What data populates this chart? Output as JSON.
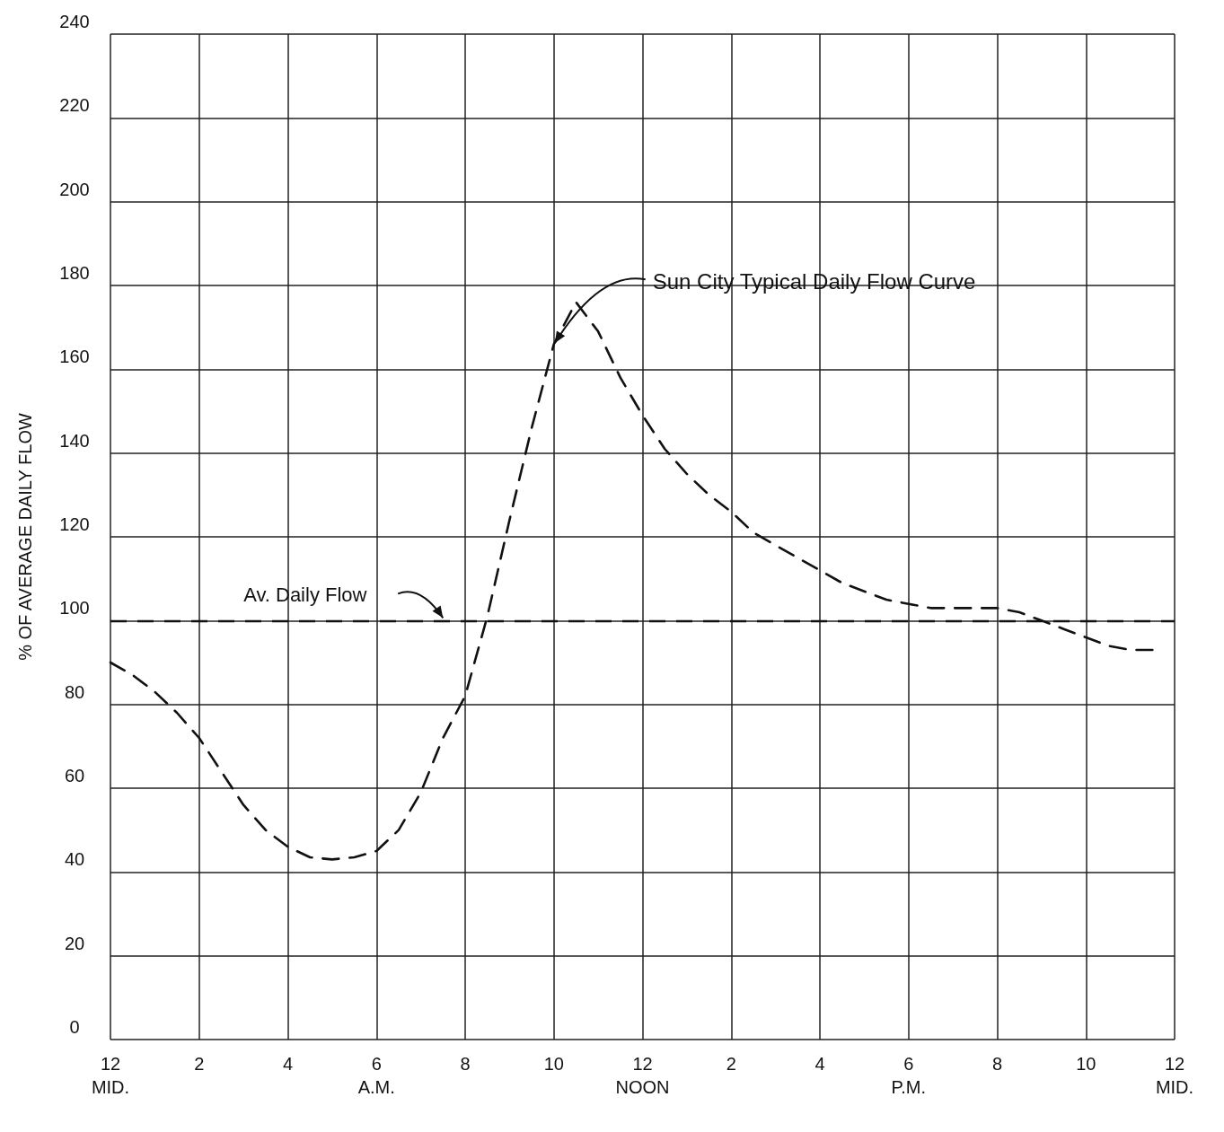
{
  "chart_data": {
    "type": "line",
    "ylabel": "% OF AVERAGE DAILY FLOW",
    "categories": [
      "12\nMID.",
      null,
      null,
      null,
      "2",
      null,
      null,
      null,
      "4",
      null,
      null,
      null,
      "6\nA.M.",
      null,
      null,
      null,
      "8",
      null,
      null,
      null,
      "10",
      null,
      null,
      null,
      "12\nNOON",
      null,
      null,
      null,
      "2",
      null,
      null,
      null,
      "4",
      null,
      null,
      null,
      "6\nP.M.",
      null,
      null,
      null,
      "8",
      null,
      null,
      null,
      "10",
      null,
      null,
      null,
      "12\nMID."
    ],
    "series": [
      {
        "color": "#111111",
        "values": [
          90,
          87,
          83,
          78,
          72,
          64,
          56,
          50,
          46,
          43.5,
          43,
          43.5,
          45,
          50,
          59,
          72,
          82,
          101,
          124,
          146,
          166,
          176,
          169,
          158,
          149,
          141,
          135,
          130,
          126,
          121,
          118,
          115,
          112,
          109,
          107,
          105,
          104,
          103,
          103,
          103,
          103,
          102,
          100,
          98,
          96,
          94,
          93,
          93,
          null
        ]
      }
    ],
    "ylim": [
      0,
      240
    ],
    "yticks": [
      0,
      20,
      40,
      60,
      80,
      100,
      120,
      140,
      160,
      180,
      200,
      220,
      240
    ],
    "ref_lines": [
      {
        "axis": "y",
        "value": 100,
        "label": "Av. Daily Flow",
        "color": "#111111",
        "line_style": "dashed"
      }
    ],
    "annotations": [
      {
        "text": "Sun City Typical Daily Flow Curve",
        "x": "10",
        "y": 166
      }
    ],
    "grid": true,
    "marker": "none",
    "line_style": "dashed"
  }
}
